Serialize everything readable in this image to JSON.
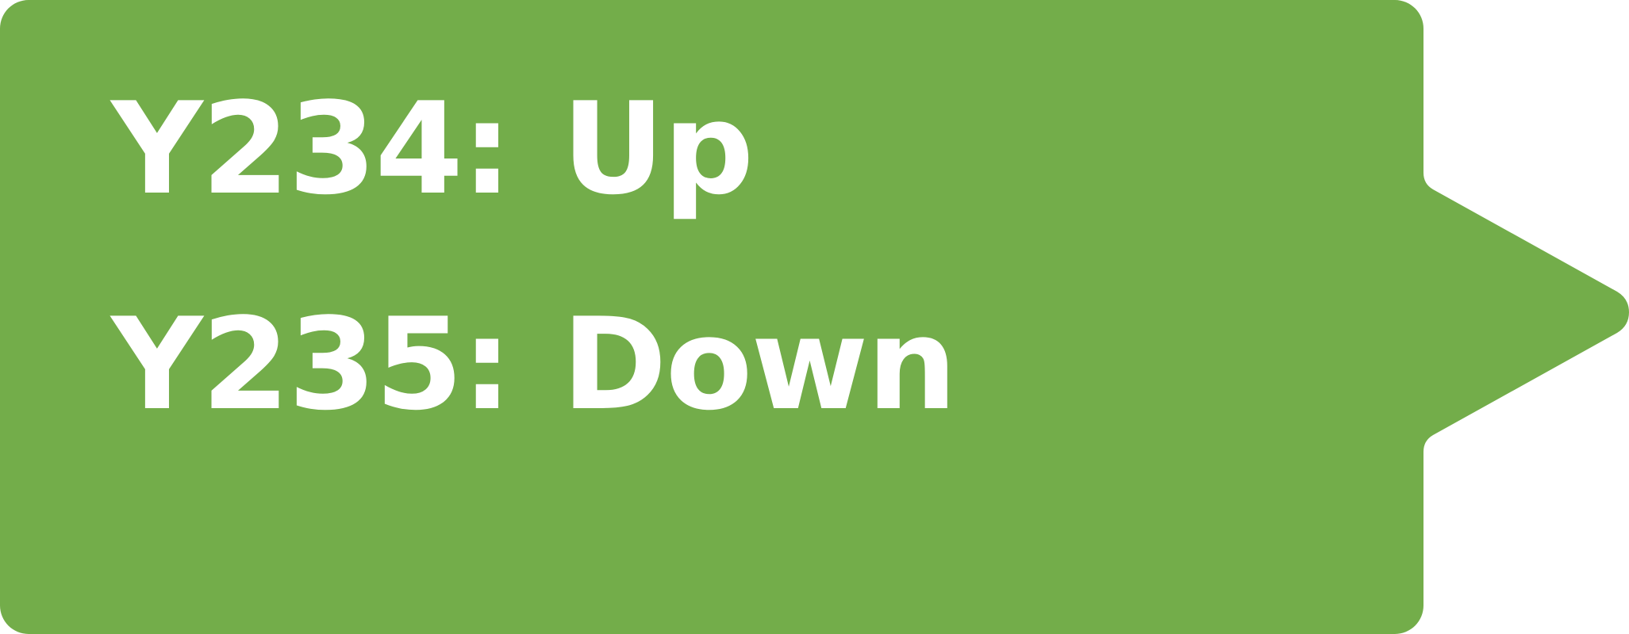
{
  "colors": {
    "background": "#73AD4A",
    "text": "#FFFFFF"
  },
  "lines": [
    {
      "key": "Y234:",
      "value": "Up"
    },
    {
      "key": "Y235:",
      "value": "Down"
    }
  ]
}
